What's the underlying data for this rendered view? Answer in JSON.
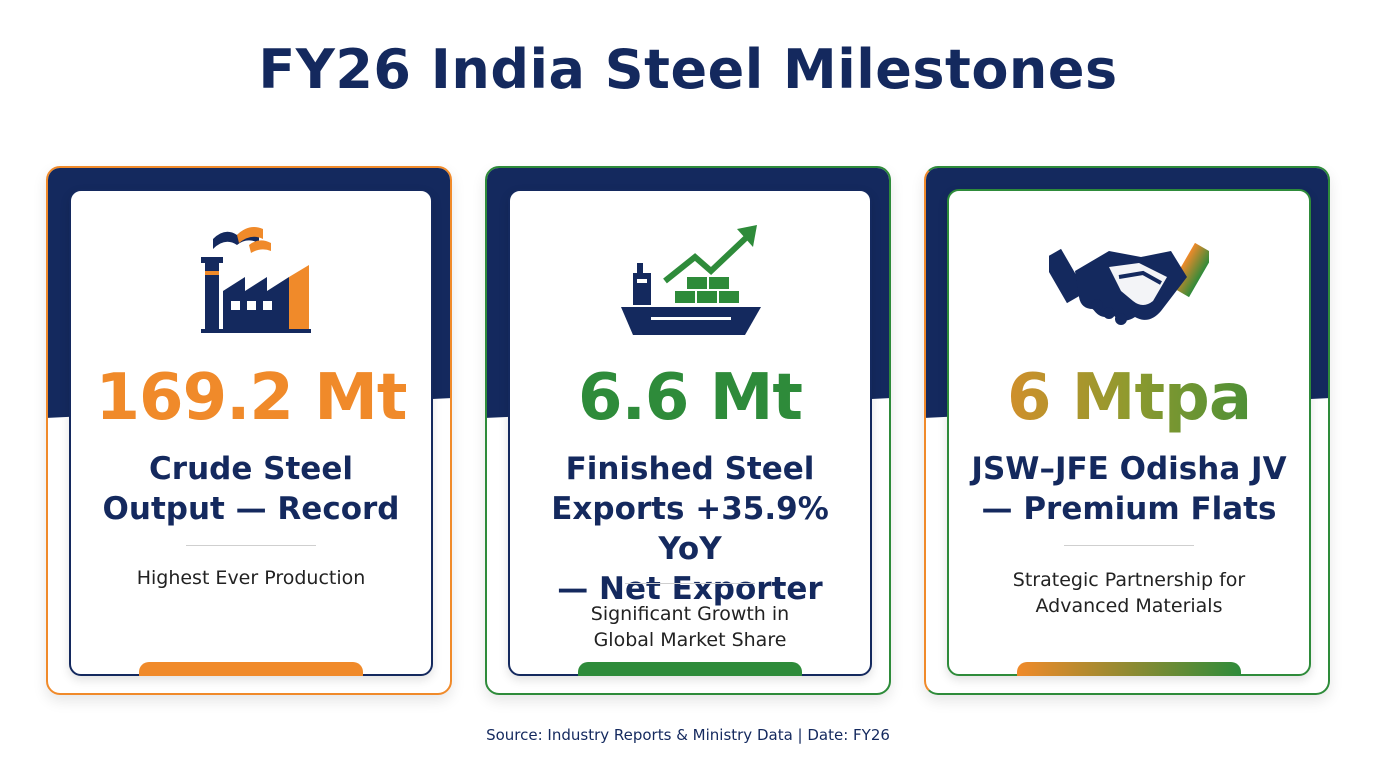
{
  "title": "FY26 India Steel Milestones",
  "colors": {
    "navy": "#14295e",
    "orange": "#f08a2a",
    "green": "#2e8b3a"
  },
  "cards": [
    {
      "icon": "factory-icon",
      "value": "169.2 Mt",
      "label_lines": [
        "Crude Steel",
        "Output — Record"
      ],
      "description_lines": [
        "Highest Ever Production"
      ],
      "accent": "#f08a2a"
    },
    {
      "icon": "cargo-ship-growth-icon",
      "value": "6.6 Mt",
      "label_lines": [
        "Finished Steel",
        "Exports +35.9% YoY",
        "— Net Exporter"
      ],
      "description_lines": [
        "Significant Growth in",
        "Global Market Share"
      ],
      "accent": "#2e8b3a"
    },
    {
      "icon": "handshake-icon",
      "value": "6 Mtpa",
      "label_lines": [
        "JSW–JFE Odisha JV",
        "— Premium Flats"
      ],
      "description_lines": [
        "Strategic Partnership for",
        "Advanced Materials"
      ],
      "accent": "gradient"
    }
  ],
  "source": "Source: Industry Reports & Ministry Data  |  Date: FY26"
}
